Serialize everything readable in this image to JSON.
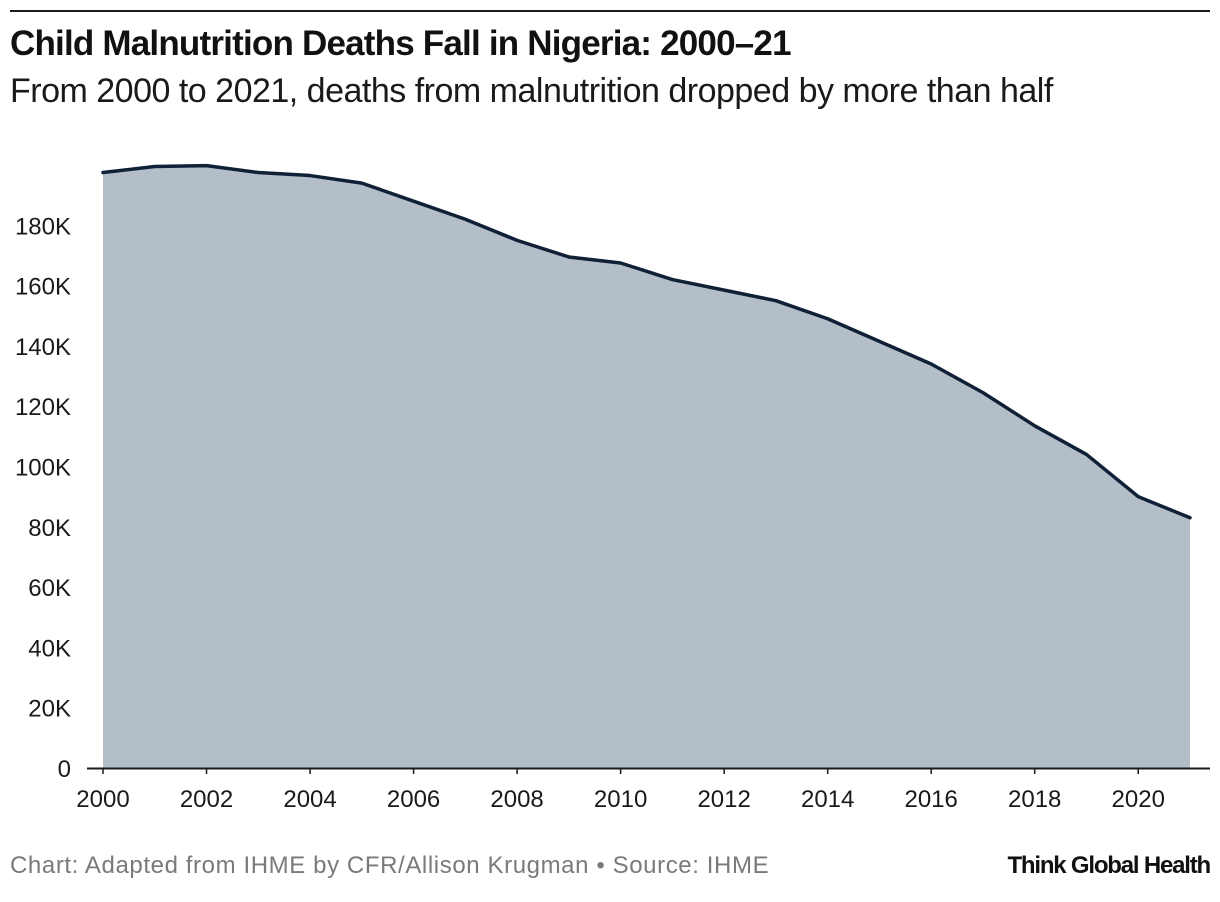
{
  "header": {
    "title": "Child Malnutrition Deaths Fall in Nigeria: 2000–21",
    "subtitle": "From 2000 to 2021, deaths from malnutrition dropped by more than half"
  },
  "footer": {
    "source": "Chart: Adapted from IHME by CFR/Allison Krugman • Source: IHME",
    "brand": "Think Global Health"
  },
  "colors": {
    "area_fill": "#b4bec9",
    "line": "#0f2037",
    "axis": "#1a1a1a",
    "text": "#1a1a1a"
  },
  "chart_data": {
    "type": "area",
    "title": "Child Malnutrition Deaths Fall in Nigeria: 2000–21",
    "subtitle": "From 2000 to 2021, deaths from malnutrition dropped by more than half",
    "xlabel": "",
    "ylabel": "",
    "x": [
      2000,
      2001,
      2002,
      2003,
      2004,
      2005,
      2006,
      2007,
      2008,
      2009,
      2010,
      2011,
      2012,
      2013,
      2014,
      2015,
      2016,
      2017,
      2018,
      2019,
      2020,
      2021
    ],
    "series": [
      {
        "name": "Child malnutrition deaths",
        "values": [
          197500,
          199500,
          199800,
          197500,
          196500,
          194000,
          188000,
          182000,
          175000,
          169500,
          167500,
          162000,
          158500,
          155000,
          149000,
          141500,
          134000,
          124500,
          113500,
          104000,
          90000,
          83000
        ]
      }
    ],
    "xlim": [
      2000,
      2021
    ],
    "ylim": [
      0,
      200000
    ],
    "x_ticks": [
      2000,
      2002,
      2004,
      2006,
      2008,
      2010,
      2012,
      2014,
      2016,
      2018,
      2020
    ],
    "x_tick_labels": [
      "2000",
      "2002",
      "2004",
      "2006",
      "2008",
      "2010",
      "2012",
      "2014",
      "2016",
      "2018",
      "2020"
    ],
    "y_ticks": [
      0,
      20000,
      40000,
      60000,
      80000,
      100000,
      120000,
      140000,
      160000,
      180000
    ],
    "y_tick_labels": [
      "0",
      "20K",
      "40K",
      "60K",
      "80K",
      "100K",
      "120K",
      "140K",
      "160K",
      "180K"
    ],
    "grid": false,
    "legend": "none"
  }
}
